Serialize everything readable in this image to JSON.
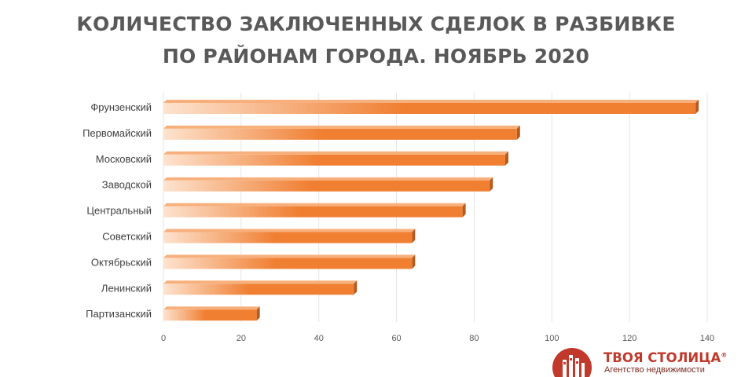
{
  "title": {
    "line1": "КОЛИЧЕСТВО ЗАКЛЮЧЕННЫХ СДЕЛОК В РАЗБИВКЕ",
    "line2": "ПО РАЙОНАМ ГОРОДА. НОЯБРЬ 2020"
  },
  "chart_data": {
    "type": "bar",
    "orientation": "horizontal",
    "title": "КОЛИЧЕСТВО ЗАКЛЮЧЕННЫХ СДЕЛОК В РАЗБИВКЕ ПО РАЙОНАМ ГОРОДА. НОЯБРЬ 2020",
    "categories": [
      "Фрунзенский",
      "Первомайский",
      "Московский",
      "Заводской",
      "Центральный",
      "Советский",
      "Октябрьский",
      "Ленинский",
      "Партизанский"
    ],
    "values": [
      137,
      91,
      88,
      84,
      77,
      64,
      64,
      49,
      24
    ],
    "xlim": [
      0,
      140
    ],
    "xticks": [
      0,
      20,
      40,
      60,
      80,
      100,
      120,
      140
    ],
    "grid": true,
    "legend": "none",
    "bar_color": "#f07f32",
    "bar_color_light": "#fde3cf",
    "bar_top_color": "#f7b07c",
    "bar_end_color": "#b55a1f"
  },
  "logo": {
    "name": "ТВОЯ СТОЛИЦА",
    "mark": "®",
    "tagline": "Агентство недвижимости",
    "color": "#c0392b"
  }
}
